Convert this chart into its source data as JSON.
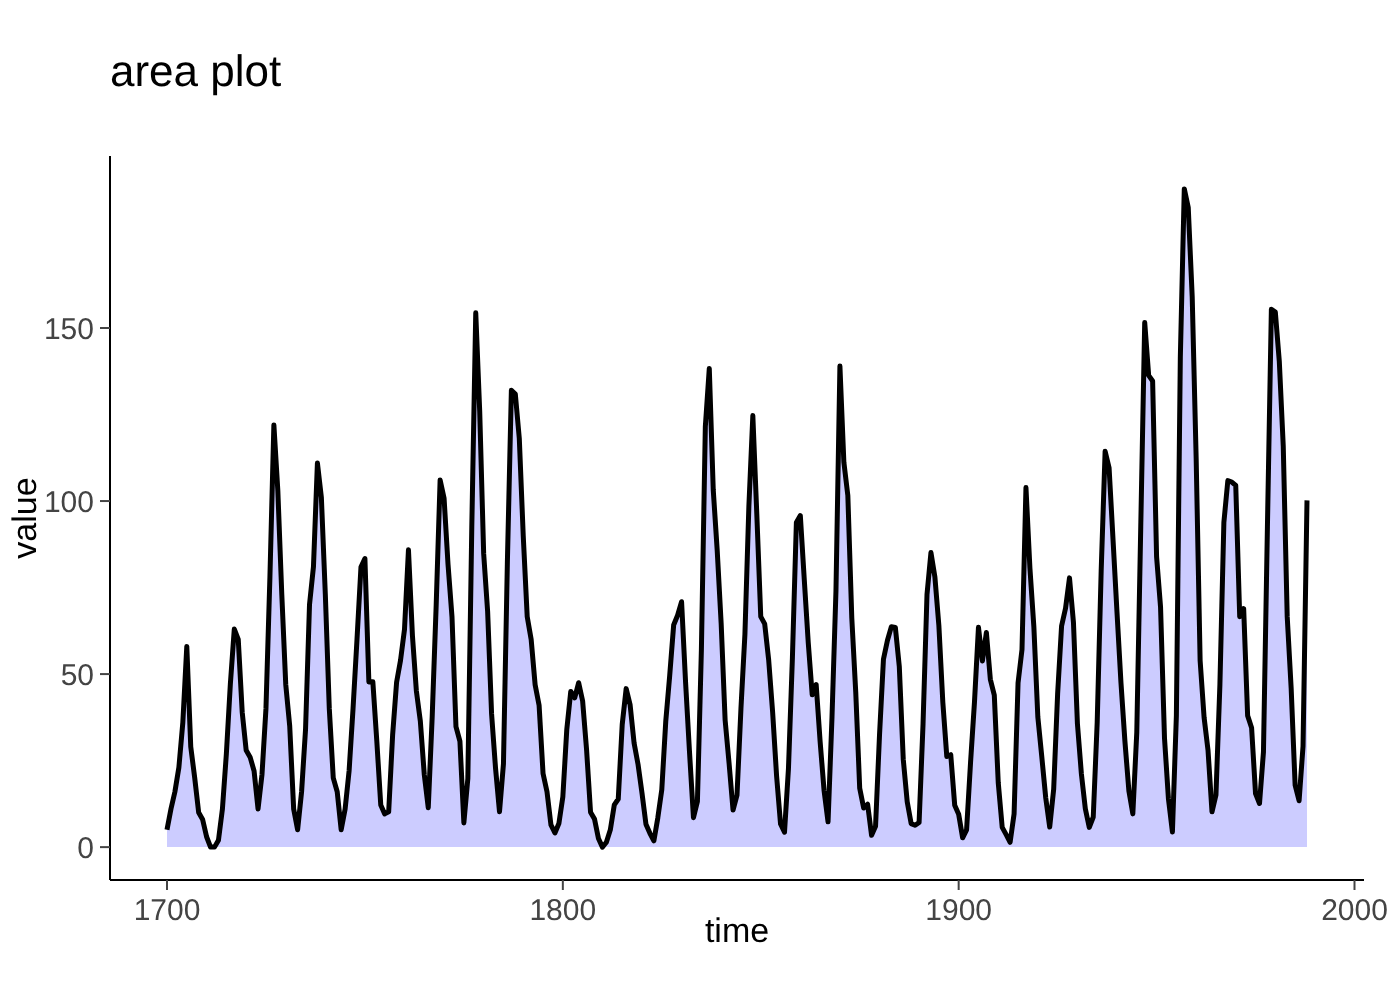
{
  "chart_data": {
    "type": "area",
    "title": "area plot",
    "xlabel": "time",
    "ylabel": "value",
    "xlim": [
      1685.6,
      2002.4
    ],
    "xticks": [
      1700,
      1800,
      1900,
      2000
    ],
    "ylim": [
      -9.5,
      199.7
    ],
    "yticks": [
      0,
      50,
      100,
      150
    ],
    "grid": false,
    "x": [
      1700,
      1701,
      1702,
      1703,
      1704,
      1705,
      1706,
      1707,
      1708,
      1709,
      1710,
      1711,
      1712,
      1713,
      1714,
      1715,
      1716,
      1717,
      1718,
      1719,
      1720,
      1721,
      1722,
      1723,
      1724,
      1725,
      1726,
      1727,
      1728,
      1729,
      1730,
      1731,
      1732,
      1733,
      1734,
      1735,
      1736,
      1737,
      1738,
      1739,
      1740,
      1741,
      1742,
      1743,
      1744,
      1745,
      1746,
      1747,
      1748,
      1749,
      1750,
      1751,
      1752,
      1753,
      1754,
      1755,
      1756,
      1757,
      1758,
      1759,
      1760,
      1761,
      1762,
      1763,
      1764,
      1765,
      1766,
      1767,
      1768,
      1769,
      1770,
      1771,
      1772,
      1773,
      1774,
      1775,
      1776,
      1777,
      1778,
      1779,
      1780,
      1781,
      1782,
      1783,
      1784,
      1785,
      1786,
      1787,
      1788,
      1789,
      1790,
      1791,
      1792,
      1793,
      1794,
      1795,
      1796,
      1797,
      1798,
      1799,
      1800,
      1801,
      1802,
      1803,
      1804,
      1805,
      1806,
      1807,
      1808,
      1809,
      1810,
      1811,
      1812,
      1813,
      1814,
      1815,
      1816,
      1817,
      1818,
      1819,
      1820,
      1821,
      1822,
      1823,
      1824,
      1825,
      1826,
      1827,
      1828,
      1829,
      1830,
      1831,
      1832,
      1833,
      1834,
      1835,
      1836,
      1837,
      1838,
      1839,
      1840,
      1841,
      1842,
      1843,
      1844,
      1845,
      1846,
      1847,
      1848,
      1849,
      1850,
      1851,
      1852,
      1853,
      1854,
      1855,
      1856,
      1857,
      1858,
      1859,
      1860,
      1861,
      1862,
      1863,
      1864,
      1865,
      1866,
      1867,
      1868,
      1869,
      1870,
      1871,
      1872,
      1873,
      1874,
      1875,
      1876,
      1877,
      1878,
      1879,
      1880,
      1881,
      1882,
      1883,
      1884,
      1885,
      1886,
      1887,
      1888,
      1889,
      1890,
      1891,
      1892,
      1893,
      1894,
      1895,
      1896,
      1897,
      1898,
      1899,
      1900,
      1901,
      1902,
      1903,
      1904,
      1905,
      1906,
      1907,
      1908,
      1909,
      1910,
      1911,
      1912,
      1913,
      1914,
      1915,
      1916,
      1917,
      1918,
      1919,
      1920,
      1921,
      1922,
      1923,
      1924,
      1925,
      1926,
      1927,
      1928,
      1929,
      1930,
      1931,
      1932,
      1933,
      1934,
      1935,
      1936,
      1937,
      1938,
      1939,
      1940,
      1941,
      1942,
      1943,
      1944,
      1945,
      1946,
      1947,
      1948,
      1949,
      1950,
      1951,
      1952,
      1953,
      1954,
      1955,
      1956,
      1957,
      1958,
      1959,
      1960,
      1961,
      1962,
      1963,
      1964,
      1965,
      1966,
      1967,
      1968,
      1969,
      1970,
      1971,
      1972,
      1973,
      1974,
      1975,
      1976,
      1977,
      1978,
      1979,
      1980,
      1981,
      1982,
      1983,
      1984,
      1985,
      1986,
      1987,
      1988
    ],
    "series": [
      {
        "color": "#ccccff",
        "values": [
          5,
          11,
          16,
          23,
          36,
          58,
          29,
          20,
          10,
          8,
          3,
          0,
          0,
          2,
          11,
          27,
          47,
          63,
          60,
          39,
          28,
          26,
          22,
          11,
          21,
          40,
          78,
          122,
          103,
          73,
          47,
          35,
          11,
          5,
          16,
          34,
          70,
          81,
          111,
          101,
          73,
          40,
          20,
          16,
          5,
          11,
          22,
          40,
          60,
          80.9,
          83.4,
          47.7,
          47.8,
          30.7,
          12.2,
          9.6,
          10.2,
          32.4,
          47.6,
          54.0,
          62.9,
          85.9,
          61.2,
          45.1,
          36.4,
          20.9,
          11.4,
          37.8,
          69.8,
          106.1,
          100.8,
          81.6,
          66.5,
          34.8,
          30.6,
          7.0,
          19.8,
          92.5,
          154.4,
          125.9,
          84.8,
          68.1,
          38.5,
          22.8,
          10.2,
          24.1,
          82.9,
          132.0,
          130.9,
          118.1,
          89.9,
          66.6,
          60.0,
          46.9,
          41.0,
          21.3,
          16.0,
          6.4,
          4.1,
          6.8,
          14.5,
          34.0,
          45.0,
          43.1,
          47.5,
          42.2,
          28.1,
          10.1,
          8.1,
          2.5,
          0.0,
          1.4,
          5.0,
          12.2,
          13.9,
          35.4,
          45.8,
          41.1,
          30.1,
          23.9,
          15.6,
          6.6,
          4.0,
          1.8,
          8.5,
          16.6,
          36.3,
          49.6,
          64.2,
          67.0,
          70.9,
          47.8,
          27.5,
          8.5,
          13.2,
          56.9,
          121.5,
          138.3,
          103.2,
          85.7,
          64.6,
          36.7,
          24.2,
          10.7,
          15.0,
          40.1,
          61.5,
          98.5,
          124.7,
          96.3,
          66.6,
          64.5,
          54.1,
          39.0,
          20.6,
          6.7,
          4.3,
          22.7,
          54.8,
          93.8,
          95.8,
          77.2,
          59.1,
          44.0,
          47.0,
          30.5,
          16.3,
          7.3,
          37.6,
          74.0,
          139.0,
          111.2,
          101.6,
          66.2,
          44.7,
          17.0,
          11.3,
          12.4,
          3.4,
          6.0,
          32.3,
          54.3,
          59.7,
          63.7,
          63.5,
          52.2,
          25.4,
          13.1,
          6.8,
          6.3,
          7.1,
          35.6,
          73.0,
          85.1,
          78.0,
          64.0,
          41.8,
          26.2,
          26.7,
          12.1,
          9.5,
          2.7,
          5.0,
          24.4,
          42.0,
          63.5,
          53.8,
          62.0,
          48.5,
          43.9,
          18.6,
          5.7,
          3.6,
          1.4,
          9.6,
          47.4,
          57.1,
          103.9,
          80.6,
          63.6,
          37.6,
          26.1,
          14.2,
          5.8,
          16.7,
          44.3,
          63.9,
          69.0,
          77.8,
          64.9,
          35.7,
          21.2,
          11.1,
          5.7,
          8.7,
          36.1,
          79.7,
          114.4,
          109.6,
          88.8,
          67.8,
          47.5,
          30.6,
          16.3,
          9.6,
          33.2,
          92.6,
          151.6,
          136.3,
          134.7,
          83.9,
          69.4,
          31.5,
          13.9,
          4.4,
          38.0,
          141.7,
          190.2,
          184.8,
          159.0,
          112.3,
          53.9,
          37.5,
          27.9,
          10.2,
          15.1,
          47.0,
          93.8,
          105.9,
          105.5,
          104.5,
          66.6,
          68.9,
          38.0,
          34.5,
          15.5,
          12.6,
          27.5,
          92.5,
          155.4,
          154.6,
          140.4,
          115.9,
          66.6,
          45.9,
          17.9,
          13.4,
          29.2,
          100.2
        ]
      }
    ]
  }
}
